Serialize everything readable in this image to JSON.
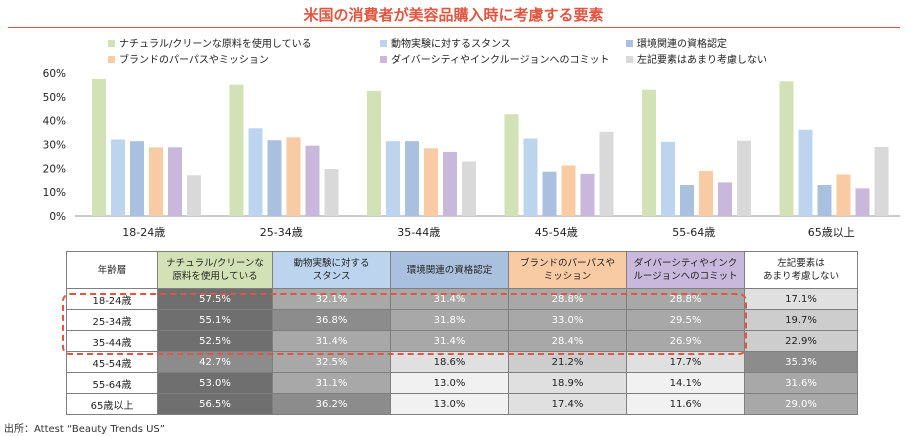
{
  "title": "米国の消費者が美容品購入時に考慮する要素",
  "source": "出所：Attest “Beauty Trends US”",
  "colors": {
    "title": "#e2553f",
    "series": [
      "#d3e2b6",
      "#bcd4ee",
      "#a9c0de",
      "#f8cba4",
      "#c9b8dc",
      "#d9d9d9"
    ],
    "highlight_border": "#e2553f"
  },
  "chart_data": {
    "type": "bar",
    "categories": [
      "18-24歳",
      "25-34歳",
      "35-44歳",
      "45-54歳",
      "55-64歳",
      "65歳以上"
    ],
    "series": [
      {
        "name": "ナチュラル/クリーンな原料を使用している",
        "values": [
          57.5,
          55.1,
          52.5,
          42.7,
          53.0,
          56.5
        ]
      },
      {
        "name": "動物実験に対するスタンス",
        "values": [
          32.1,
          36.8,
          31.4,
          32.5,
          31.1,
          36.2
        ]
      },
      {
        "name": "環境関連の資格認定",
        "values": [
          31.4,
          31.8,
          31.4,
          18.6,
          13.0,
          13.0
        ]
      },
      {
        "name": "ブランドのパーパスやミッション",
        "values": [
          28.8,
          33.0,
          28.4,
          21.2,
          18.9,
          17.4
        ]
      },
      {
        "name": "ダイバーシティやインクルージョンへのコミット",
        "values": [
          28.8,
          29.5,
          26.9,
          17.7,
          14.1,
          11.6
        ]
      },
      {
        "name": "左記要素はあまり考慮しない",
        "values": [
          17.1,
          19.7,
          22.9,
          35.3,
          31.6,
          29.0
        ]
      }
    ],
    "ylim": [
      0,
      60
    ],
    "yticks": [
      "0%",
      "10%",
      "20%",
      "30%",
      "40%",
      "50%",
      "60%"
    ],
    "grid": false,
    "legend_position": "top"
  },
  "table": {
    "corner": "年齢層",
    "headers": [
      [
        "ナチュラル/クリーンな",
        "原料を使用している"
      ],
      [
        "動物実験に対する",
        "スタンス"
      ],
      [
        "環境関連の資格認定"
      ],
      [
        "ブランドのパーパスや",
        "ミッション"
      ],
      [
        "ダイバーシティやインク",
        "ルージョンへのコミット"
      ],
      [
        "左記要素は",
        "あまり考慮しない"
      ]
    ],
    "header_colors": [
      "#d3e2b6",
      "#bcd4ee",
      "#a9c0de",
      "#f8cba4",
      "#c9b8dc",
      "#ffffff"
    ],
    "rows": [
      {
        "label": "18-24歳",
        "cells": [
          "57.5%",
          "32.1%",
          "31.4%",
          "28.8%",
          "28.8%",
          "17.1%"
        ]
      },
      {
        "label": "25-34歳",
        "cells": [
          "55.1%",
          "36.8%",
          "31.8%",
          "33.0%",
          "29.5%",
          "19.7%"
        ]
      },
      {
        "label": "35-44歳",
        "cells": [
          "52.5%",
          "31.4%",
          "31.4%",
          "28.4%",
          "26.9%",
          "22.9%"
        ]
      },
      {
        "label": "45-54歳",
        "cells": [
          "42.7%",
          "32.5%",
          "18.6%",
          "21.2%",
          "17.7%",
          "35.3%"
        ]
      },
      {
        "label": "55-64歳",
        "cells": [
          "53.0%",
          "31.1%",
          "13.0%",
          "18.9%",
          "14.1%",
          "31.6%"
        ]
      },
      {
        "label": "65歳以上",
        "cells": [
          "56.5%",
          "36.2%",
          "13.0%",
          "17.4%",
          "11.6%",
          "29.0%"
        ]
      }
    ]
  }
}
